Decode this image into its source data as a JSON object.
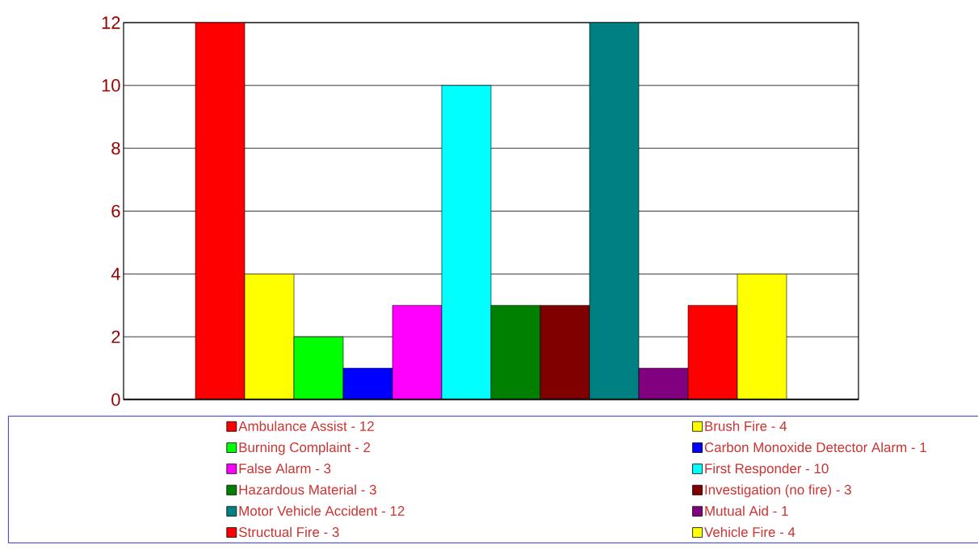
{
  "chart_data": {
    "type": "bar",
    "categories": [
      null
    ],
    "series": [
      {
        "name": "Ambulance Assist - 12",
        "color": "#ff0000",
        "values": [
          12
        ]
      },
      {
        "name": "Brush Fire - 4",
        "color": "#ffff00",
        "values": [
          4
        ]
      },
      {
        "name": "Burning Complaint - 2",
        "color": "#00ff00",
        "values": [
          2
        ]
      },
      {
        "name": "Carbon Monoxide Detector Alarm - 1",
        "color": "#0000ff",
        "values": [
          1
        ]
      },
      {
        "name": "False Alarm - 3",
        "color": "#ff00ff",
        "values": [
          3
        ]
      },
      {
        "name": "First Responder - 10",
        "color": "#00ffff",
        "values": [
          10
        ]
      },
      {
        "name": "Hazardous Material - 3",
        "color": "#008000",
        "values": [
          3
        ]
      },
      {
        "name": "Investigation (no fire) - 3",
        "color": "#800000",
        "values": [
          3
        ]
      },
      {
        "name": "Motor Vehicle Accident - 12",
        "color": "#008080",
        "values": [
          12
        ]
      },
      {
        "name": "Mutual Aid - 1",
        "color": "#800080",
        "values": [
          1
        ]
      },
      {
        "name": "Structual Fire - 3",
        "color": "#ff0000",
        "values": [
          3
        ]
      },
      {
        "name": "Vehicle Fire - 4",
        "color": "#ffff00",
        "values": [
          4
        ]
      }
    ],
    "ylim": [
      0,
      12
    ],
    "yticks": [
      0,
      2,
      4,
      6,
      8,
      10,
      12
    ],
    "grid": "y",
    "legend": "bottom"
  }
}
